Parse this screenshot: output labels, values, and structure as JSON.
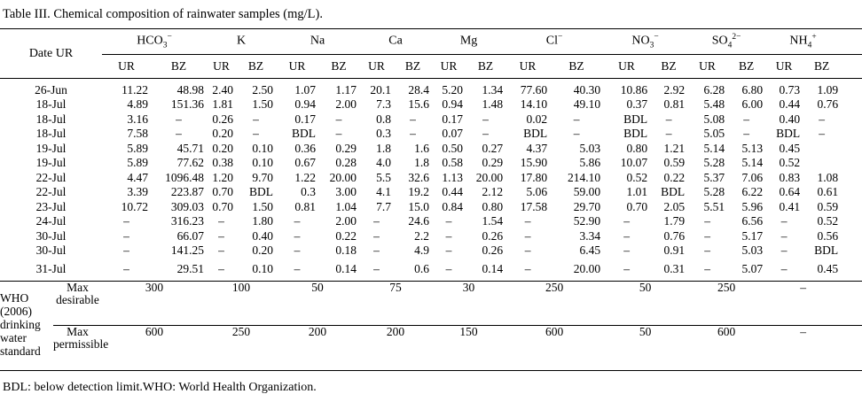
{
  "title": "Table III. Chemical composition of rainwater samples (mg/L).",
  "table": {
    "date_header": "Date UR",
    "subheaders": [
      "UR",
      "BZ"
    ],
    "ions": [
      {
        "key": "hco3",
        "base": "HCO",
        "sub": "3",
        "sup": "−"
      },
      {
        "key": "k",
        "base": "K",
        "sub": "",
        "sup": ""
      },
      {
        "key": "na",
        "base": "Na",
        "sub": "",
        "sup": ""
      },
      {
        "key": "ca",
        "base": "Ca",
        "sub": "",
        "sup": ""
      },
      {
        "key": "mg",
        "base": "Mg",
        "sub": "",
        "sup": ""
      },
      {
        "key": "cl",
        "base": "Cl",
        "sub": "",
        "sup": "−"
      },
      {
        "key": "no3",
        "base": "NO",
        "sub": "3",
        "sup": "−"
      },
      {
        "key": "so4",
        "base": "SO",
        "sub": "4",
        "sup": "2−"
      },
      {
        "key": "nh4",
        "base": "NH",
        "sub": "4",
        "sup": "+"
      }
    ],
    "rows": [
      {
        "date": "26-Jun",
        "values": [
          "11.22",
          "48.98",
          "2.40",
          "2.50",
          "1.07",
          "1.17",
          "20.1",
          "28.4",
          "5.20",
          "1.34",
          "77.60",
          "40.30",
          "10.86",
          "2.92",
          "6.28",
          "6.80",
          "0.73",
          "1.09"
        ]
      },
      {
        "date": "18-Jul",
        "values": [
          "4.89",
          "151.36",
          "1.81",
          "1.50",
          "0.94",
          "2.00",
          "7.3",
          "15.6",
          "0.94",
          "1.48",
          "14.10",
          "49.10",
          "0.37",
          "0.81",
          "5.48",
          "6.00",
          "0.44",
          "0.76"
        ]
      },
      {
        "date": "18-Jul",
        "values": [
          "3.16",
          "–",
          "0.26",
          "–",
          "0.17",
          "–",
          "0.8",
          "–",
          "0.17",
          "–",
          "0.02",
          "–",
          "BDL",
          "–",
          "5.08",
          "–",
          "0.40",
          "–"
        ]
      },
      {
        "date": "18-Jul",
        "values": [
          "7.58",
          "–",
          "0.20",
          "–",
          "BDL",
          "–",
          "0.3",
          "–",
          "0.07",
          "–",
          "BDL",
          "–",
          "BDL",
          "–",
          "5.05",
          "–",
          "BDL",
          "–"
        ]
      },
      {
        "date": "19-Jul",
        "values": [
          "5.89",
          "45.71",
          "0.20",
          "0.10",
          "0.36",
          "0.29",
          "1.8",
          "1.6",
          "0.50",
          "0.27",
          "4.37",
          "5.03",
          "0.80",
          "1.21",
          "5.14",
          "5.13",
          "0.45",
          ""
        ]
      },
      {
        "date": "19-Jul",
        "values": [
          "5.89",
          "77.62",
          "0.38",
          "0.10",
          "0.67",
          "0.28",
          "4.0",
          "1.8",
          "0.58",
          "0.29",
          "15.90",
          "5.86",
          "10.07",
          "0.59",
          "5.28",
          "5.14",
          "0.52",
          ""
        ]
      },
      {
        "date": "22-Jul",
        "values": [
          "4.47",
          "1096.48",
          "1.20",
          "9.70",
          "1.22",
          "20.00",
          "5.5",
          "32.6",
          "1.13",
          "20.00",
          "17.80",
          "214.10",
          "0.52",
          "0.22",
          "5.37",
          "7.06",
          "0.83",
          "1.08"
        ]
      },
      {
        "date": "22-Jul",
        "values": [
          "3.39",
          "223.87",
          "0.70",
          "BDL",
          "0.3",
          "3.00",
          "4.1",
          "19.2",
          "0.44",
          "2.12",
          "5.06",
          "59.00",
          "1.01",
          "BDL",
          "5.28",
          "6.22",
          "0.64",
          "0.61"
        ]
      },
      {
        "date": "23-Jul",
        "values": [
          "10.72",
          "309.03",
          "0.70",
          "1.50",
          "0.81",
          "1.04",
          "7.7",
          "15.0",
          "0.84",
          "0.80",
          "17.58",
          "29.70",
          "0.70",
          "2.05",
          "5.51",
          "5.96",
          "0.41",
          "0.59"
        ]
      },
      {
        "date": "24-Jul",
        "values": [
          "–",
          "316.23",
          "–",
          "1.80",
          "–",
          "2.00",
          "–",
          "24.6",
          "–",
          "1.54",
          "–",
          "52.90",
          "–",
          "1.79",
          "–",
          "6.56",
          "–",
          "0.52"
        ]
      },
      {
        "date": "30-Jul",
        "values": [
          "–",
          "66.07",
          "–",
          "0.40",
          "–",
          "0.22",
          "–",
          "2.2",
          "–",
          "0.26",
          "–",
          "3.34",
          "–",
          "0.76",
          "–",
          "5.17",
          "–",
          "0.56"
        ]
      },
      {
        "date": "30-Jul",
        "values": [
          "–",
          "141.25",
          "–",
          "0.20",
          "–",
          "0.18",
          "–",
          "4.9",
          "–",
          "0.26",
          "–",
          "6.45",
          "–",
          "0.91",
          "–",
          "5.03",
          "–",
          "BDL"
        ]
      },
      {
        "date": "31-Jul",
        "values": [
          "–",
          "29.51",
          "–",
          "0.10",
          "–",
          "0.14",
          "–",
          "0.6",
          "–",
          "0.14",
          "–",
          "20.00",
          "–",
          "0.31",
          "–",
          "5.07",
          "–",
          "0.45"
        ]
      }
    ],
    "who": {
      "label": "WHO (2006) drinking water standard",
      "rows": [
        {
          "label": "Max desirable",
          "values": [
            "300",
            "100",
            "50",
            "75",
            "30",
            "250",
            "50",
            "250",
            "–"
          ]
        },
        {
          "label": "Max permissible",
          "values": [
            "600",
            "250",
            "200",
            "200",
            "150",
            "600",
            "50",
            "600",
            "–"
          ]
        }
      ]
    }
  },
  "footnote": "BDL: below detection limit.WHO: World Health Organization."
}
